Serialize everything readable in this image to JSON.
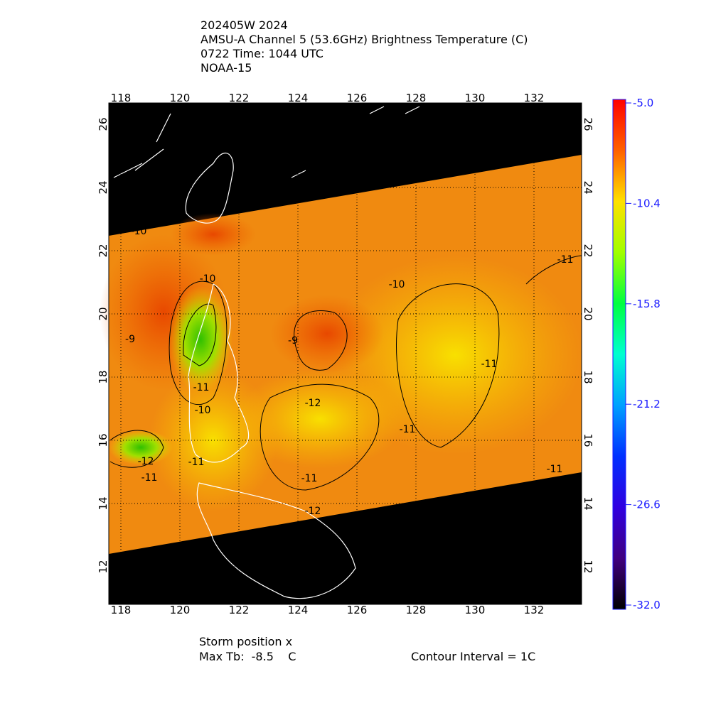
{
  "header": {
    "lines": [
      "202405W 2024",
      "AMSU-A Channel 5 (53.6GHz) Brightness Temperature (C)",
      "0722 Time: 1044 UTC",
      "NOAA-15"
    ]
  },
  "map": {
    "lon_ticks": [
      118,
      120,
      122,
      124,
      126,
      128,
      130,
      132
    ],
    "lat_ticks": [
      12,
      14,
      16,
      18,
      20,
      22,
      24,
      26
    ],
    "contour_labels": [
      -10,
      -10,
      -9,
      -9,
      -10,
      -11,
      -11,
      -12,
      -11,
      -10,
      -11,
      -12,
      -11,
      -11,
      -11,
      -11,
      -12
    ]
  },
  "colorbar": {
    "ticks": [
      {
        "value": -5,
        "label": "-5.0"
      },
      -10.4,
      -15.8,
      -21.2,
      -26.6,
      {
        "value": -32,
        "label": "-32.0"
      }
    ]
  },
  "footer": {
    "storm": "Storm position x",
    "max_tb": "Max Tb:  -8.5    C",
    "contour": "Contour Interval = 1C"
  }
}
